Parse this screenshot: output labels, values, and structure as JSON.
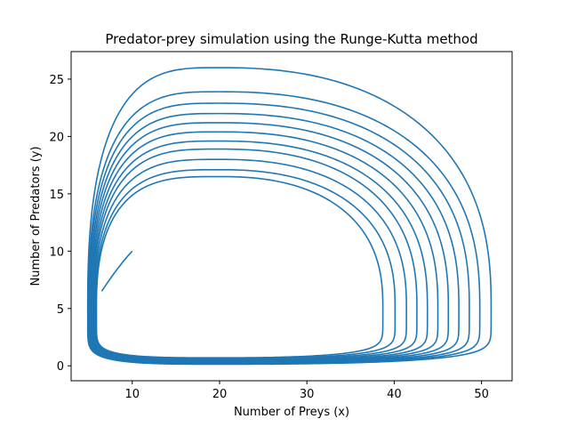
{
  "chart_data": {
    "type": "line",
    "title": "Predator-prey simulation using the Runge-Kutta method",
    "xlabel": "Number of Preys (x)",
    "ylabel": "Number of Predators (y)",
    "xlim": [
      3,
      53.5
    ],
    "ylim": [
      -1.3,
      27.4
    ],
    "xticks": [
      10,
      20,
      30,
      40,
      50
    ],
    "yticks": [
      0,
      5,
      10,
      15,
      20,
      25
    ],
    "grid": false,
    "line_color": "#1f77b4",
    "start_point": [
      10,
      10
    ],
    "orbits": [
      {
        "x_min": 5.9,
        "x_max": 38.7,
        "y_min": 0.7,
        "y_max": 16.5
      },
      {
        "x_min": 5.8,
        "x_max": 40.1,
        "y_min": 0.62,
        "y_max": 17.1
      },
      {
        "x_min": 5.7,
        "x_max": 41.4,
        "y_min": 0.55,
        "y_max": 18.0
      },
      {
        "x_min": 5.6,
        "x_max": 42.6,
        "y_min": 0.48,
        "y_max": 18.9
      },
      {
        "x_min": 5.5,
        "x_max": 43.8,
        "y_min": 0.42,
        "y_max": 19.6
      },
      {
        "x_min": 5.4,
        "x_max": 45.0,
        "y_min": 0.37,
        "y_max": 20.4
      },
      {
        "x_min": 5.3,
        "x_max": 46.2,
        "y_min": 0.32,
        "y_max": 21.2
      },
      {
        "x_min": 5.2,
        "x_max": 47.4,
        "y_min": 0.27,
        "y_max": 22.0
      },
      {
        "x_min": 5.1,
        "x_max": 48.6,
        "y_min": 0.22,
        "y_max": 22.9
      },
      {
        "x_min": 5.0,
        "x_max": 49.8,
        "y_min": 0.18,
        "y_max": 23.9
      },
      {
        "x_min": 4.9,
        "x_max": 51.1,
        "y_min": 0.14,
        "y_max": 26.0
      }
    ],
    "peak_x": 20,
    "peak_y_x": 5
  }
}
